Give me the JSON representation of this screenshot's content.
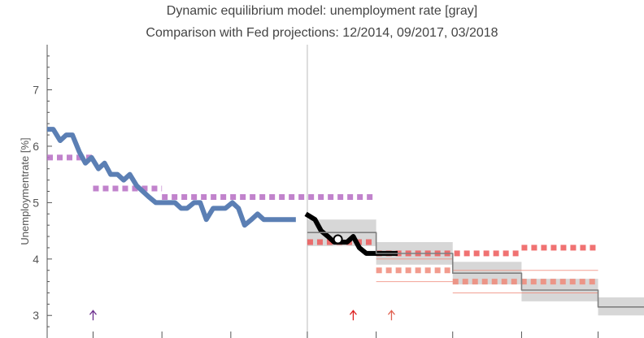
{
  "chart_data": {
    "type": "line",
    "title": "Dynamic equilibrium model: unemployment rate [gray]",
    "subtitle": "Comparison with Fed projections: 12/2014, 09/2017, 03/2018",
    "xlabel": "",
    "ylabel": "Unemploymentrate [%]",
    "xlim": [
      2014.0,
      2021.8
    ],
    "ylim": [
      2.6,
      7.8
    ],
    "y_ticks": [
      3,
      4,
      5,
      6,
      7
    ],
    "x_major_ticks": [
      2014,
      2014.6,
      2015.5,
      2016.4,
      2017.4,
      2018.3,
      2019.3,
      2020.2,
      2021.2
    ],
    "vline_x": 2017.4,
    "colors": {
      "data": "#5b7fb4",
      "recent": "#000000",
      "model": "#808080",
      "band": "#d7d7d7",
      "fed_2014": "#b76ec4",
      "fed_2017": "#f08a7a",
      "fed_2018": "#ee5a5a",
      "arrow_2014": "#6a2c8c",
      "arrow_2017": "#e06050",
      "arrow_2018": "#dd1c1c"
    },
    "series": [
      {
        "role": "data",
        "x": [
          2014.0,
          2014.08,
          2014.17,
          2014.25,
          2014.33,
          2014.42,
          2014.5,
          2014.58,
          2014.67,
          2014.75,
          2014.83,
          2014.92,
          2015.0,
          2015.08,
          2015.17,
          2015.25,
          2015.33,
          2015.42,
          2015.5,
          2015.58,
          2015.67,
          2015.75,
          2015.83,
          2015.92,
          2016.0,
          2016.08,
          2016.17,
          2016.25,
          2016.33,
          2016.42,
          2016.5,
          2016.58,
          2016.67,
          2016.75,
          2016.83,
          2016.92,
          2017.0,
          2017.08,
          2017.17,
          2017.25
        ],
        "values": [
          6.3,
          6.3,
          6.1,
          6.2,
          6.2,
          5.9,
          5.7,
          5.8,
          5.6,
          5.7,
          5.5,
          5.5,
          5.4,
          5.5,
          5.3,
          5.2,
          5.1,
          5.0,
          5.0,
          5.0,
          5.0,
          4.9,
          4.9,
          5.0,
          5.0,
          4.7,
          4.9,
          4.9,
          4.9,
          5.0,
          4.9,
          4.6,
          4.7,
          4.8,
          4.7,
          4.7,
          4.7,
          4.7,
          4.7,
          4.7
        ]
      },
      {
        "role": "recent",
        "x": [
          2017.38,
          2017.5,
          2017.58,
          2017.67,
          2017.75,
          2017.83,
          2017.92,
          2018.0,
          2018.08,
          2018.17,
          2018.25,
          2018.33,
          2018.42,
          2018.5,
          2018.58
        ],
        "values": [
          4.8,
          4.7,
          4.5,
          4.4,
          4.3,
          4.3,
          4.3,
          4.4,
          4.2,
          4.1,
          4.1,
          4.1,
          4.1,
          4.1,
          4.1
        ]
      },
      {
        "role": "model",
        "x": [
          2017.4,
          2018.3,
          2018.3,
          2019.3,
          2019.3,
          2020.2,
          2020.2,
          2021.2,
          2021.2,
          2022.0
        ],
        "values": [
          4.47,
          4.47,
          4.1,
          4.1,
          3.75,
          3.75,
          3.45,
          3.45,
          3.15,
          3.15
        ]
      }
    ],
    "model_band": [
      {
        "x0": 2017.4,
        "x1": 2018.3,
        "lo": 4.23,
        "hi": 4.7
      },
      {
        "x0": 2018.3,
        "x1": 2019.3,
        "lo": 3.9,
        "hi": 4.3
      },
      {
        "x0": 2019.3,
        "x1": 2020.2,
        "lo": 3.55,
        "hi": 3.95
      },
      {
        "x0": 2020.2,
        "x1": 2021.2,
        "lo": 3.25,
        "hi": 3.65
      },
      {
        "x0": 2021.2,
        "x1": 2022.0,
        "lo": 3.0,
        "hi": 3.32
      }
    ],
    "fed_projections": [
      {
        "name": "12/2014",
        "role": "fed_2014",
        "segments": [
          [
            2014.0,
            2014.6,
            5.8
          ],
          [
            2014.6,
            2015.5,
            5.25
          ],
          [
            2015.5,
            2018.3,
            5.1
          ]
        ]
      },
      {
        "name": "09/2017",
        "role": "fed_2017",
        "segments": [
          [
            2018.3,
            2019.3,
            3.8
          ],
          [
            2019.3,
            2021.2,
            3.6
          ]
        ],
        "band": [
          [
            2018.3,
            2019.3,
            3.6,
            4.0
          ],
          [
            2019.3,
            2020.2,
            3.4,
            3.8
          ],
          [
            2020.2,
            2021.2,
            3.4,
            3.8
          ]
        ]
      },
      {
        "name": "03/2018",
        "role": "fed_2018",
        "segments": [
          [
            2017.4,
            2018.3,
            4.3
          ],
          [
            2018.3,
            2020.2,
            4.1
          ],
          [
            2020.2,
            2021.2,
            4.2
          ]
        ]
      }
    ],
    "arrows": [
      {
        "role": "arrow_2014",
        "x": 2014.6,
        "y": 3.0
      },
      {
        "role": "arrow_2018",
        "x": 2018.0,
        "y": 3.0
      },
      {
        "role": "arrow_2017",
        "x": 2018.5,
        "y": 3.0
      }
    ],
    "marker": {
      "x": 2017.8,
      "y": 4.35
    }
  }
}
